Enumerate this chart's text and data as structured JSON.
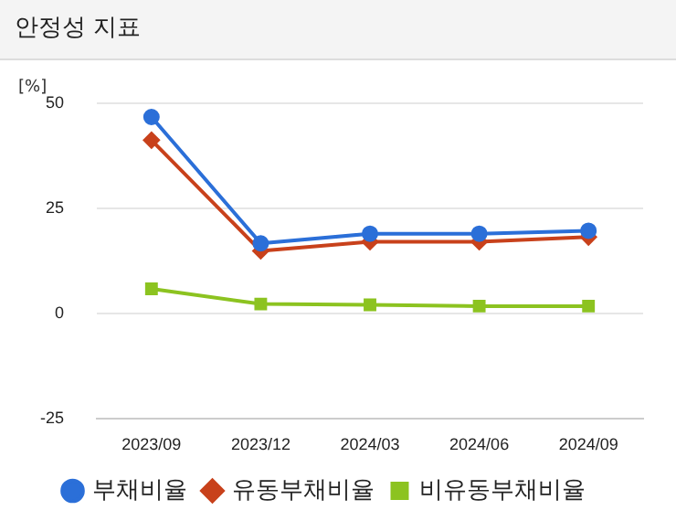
{
  "chart_data": {
    "type": "line",
    "title": "안정성 지표",
    "ylabel": "[%]",
    "categories": [
      "2023/09",
      "2023/12",
      "2024/03",
      "2024/06",
      "2024/09"
    ],
    "series": [
      {
        "name": "부채비율",
        "color": "#2b6fd8",
        "marker": "circle",
        "values": [
          46.7,
          16.7,
          19.0,
          19.0,
          19.7
        ]
      },
      {
        "name": "유동부채비율",
        "color": "#c8411b",
        "marker": "diamond",
        "values": [
          41.2,
          14.9,
          17.1,
          17.1,
          18.2
        ]
      },
      {
        "name": "비유동부채비율",
        "color": "#8cc320",
        "marker": "square",
        "values": [
          5.9,
          2.3,
          2.1,
          1.8,
          1.8
        ]
      }
    ],
    "ylim": [
      -25,
      50
    ],
    "yticks": [
      -25,
      0,
      25,
      50
    ],
    "grid": "y",
    "legend": "bottom"
  }
}
